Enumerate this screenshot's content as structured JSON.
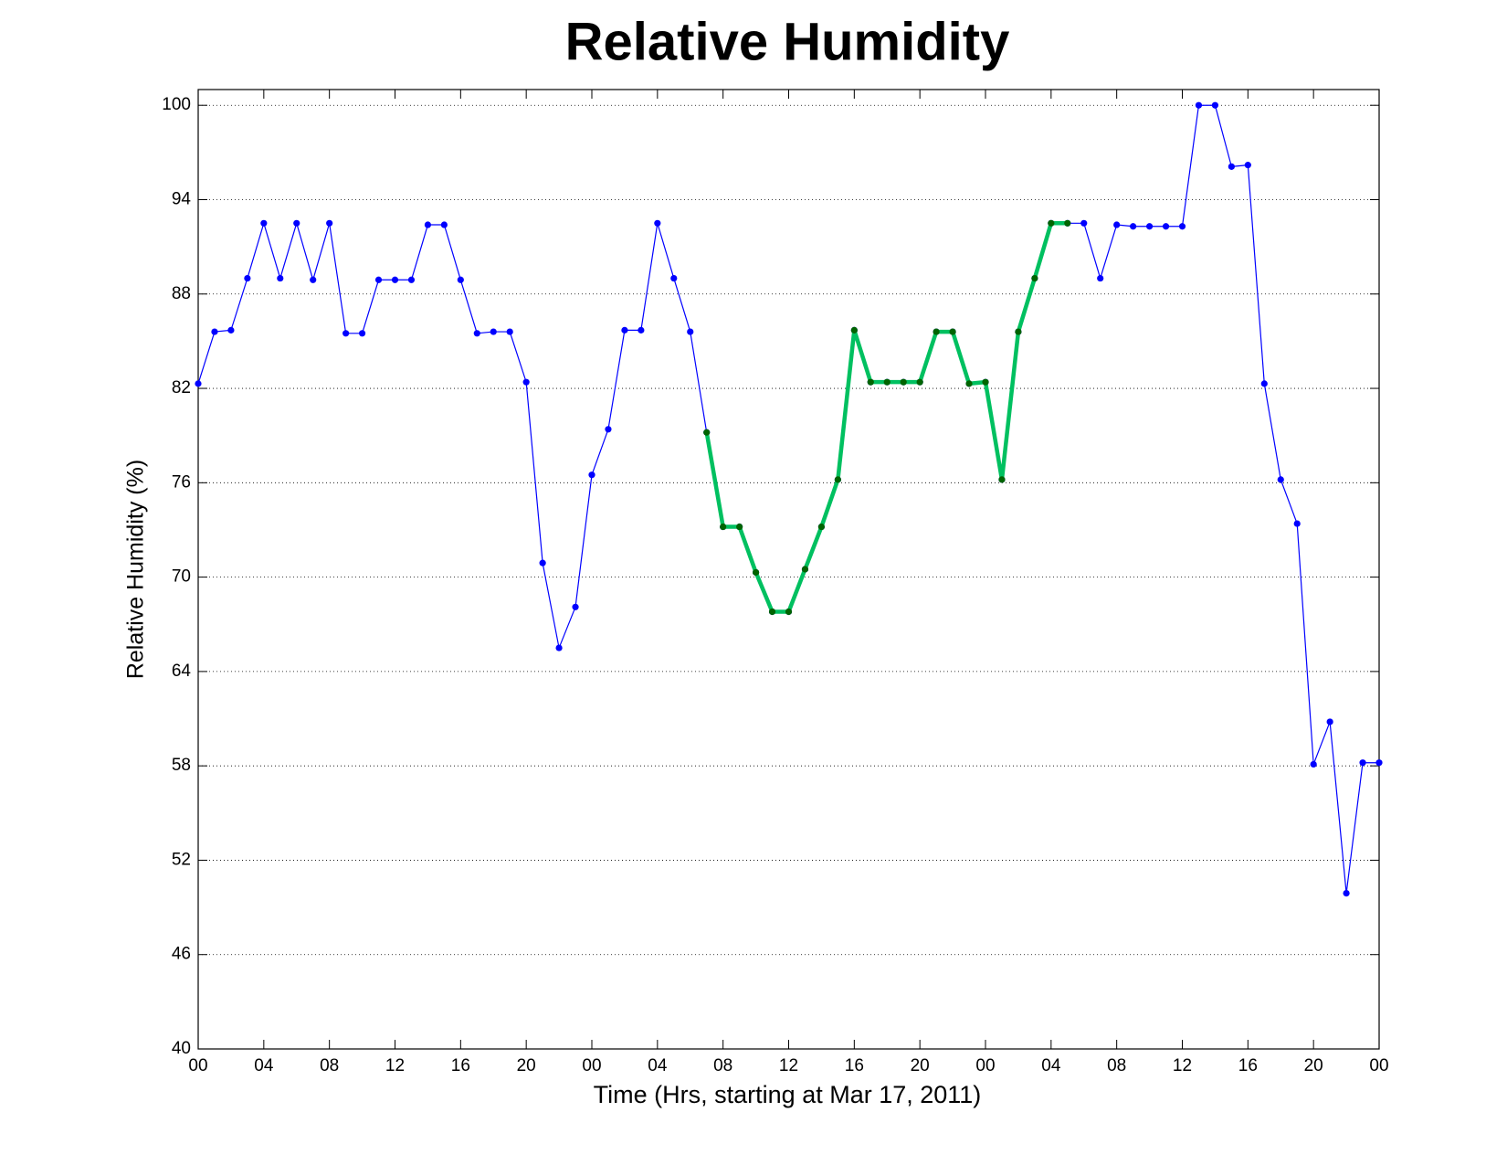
{
  "chart_data": {
    "type": "line",
    "title": "Relative Humidity",
    "xlabel": "Time (Hrs, starting at Mar 17, 2011)",
    "ylabel": "Relative Humidity (%)",
    "x": [
      0,
      1,
      2,
      3,
      4,
      5,
      6,
      7,
      8,
      9,
      10,
      11,
      12,
      13,
      14,
      15,
      16,
      17,
      18,
      19,
      20,
      21,
      22,
      23,
      24,
      25,
      26,
      27,
      28,
      29,
      30,
      31,
      32,
      33,
      34,
      35,
      36,
      37,
      38,
      39,
      40,
      41,
      42,
      43,
      44,
      45,
      46,
      47,
      48,
      49,
      50,
      51,
      52,
      53,
      54,
      55,
      56,
      57,
      58,
      59,
      60,
      61,
      62,
      63,
      64,
      65,
      66,
      67,
      68,
      69,
      70,
      71,
      72
    ],
    "series": [
      {
        "color": "#0000ff",
        "marker_color": "#0000ff",
        "line_width": 1.2,
        "values": [
          82.3,
          85.6,
          85.7,
          89.0,
          92.5,
          89.0,
          92.5,
          88.9,
          92.5,
          85.5,
          85.5,
          88.9,
          88.9,
          88.9,
          92.4,
          92.4,
          88.9,
          85.5,
          85.6,
          85.6,
          82.4,
          70.9,
          65.5,
          68.1,
          76.5,
          79.4,
          85.7,
          85.7,
          92.5,
          89.0,
          85.6,
          79.2,
          73.2,
          73.2,
          70.3,
          67.8,
          67.8,
          70.5,
          73.2,
          76.2,
          85.7,
          82.4,
          82.4,
          82.4,
          82.4,
          85.6,
          85.6,
          82.3,
          82.4,
          76.2,
          85.6,
          89.0,
          92.5,
          92.5,
          92.5,
          89.0,
          92.4,
          92.3,
          92.3,
          92.3,
          92.3,
          100,
          100,
          96.1,
          96.2,
          82.3,
          76.2,
          73.4,
          58.1,
          60.8,
          49.9,
          58.2,
          58.2
        ]
      },
      {
        "color": "#00c060",
        "marker_color": "#006400",
        "line_width": 4.5,
        "values": [
          null,
          null,
          null,
          null,
          null,
          null,
          null,
          null,
          null,
          null,
          null,
          null,
          null,
          null,
          null,
          null,
          null,
          null,
          null,
          null,
          null,
          null,
          null,
          null,
          null,
          null,
          null,
          null,
          null,
          null,
          null,
          79.2,
          73.2,
          73.2,
          70.3,
          67.8,
          67.8,
          70.5,
          73.2,
          76.2,
          85.7,
          82.4,
          82.4,
          82.4,
          82.4,
          85.6,
          85.6,
          82.3,
          82.4,
          76.2,
          85.6,
          89.0,
          92.5,
          92.5,
          null,
          null,
          null,
          null,
          null,
          null,
          null,
          null,
          null,
          null,
          null,
          null,
          null,
          null,
          null,
          null,
          null,
          null,
          null
        ]
      }
    ],
    "xlim": [
      0,
      72
    ],
    "xticks": [
      {
        "value": 0,
        "label": "00"
      },
      {
        "value": 4,
        "label": "04"
      },
      {
        "value": 8,
        "label": "08"
      },
      {
        "value": 12,
        "label": "12"
      },
      {
        "value": 16,
        "label": "16"
      },
      {
        "value": 20,
        "label": "20"
      },
      {
        "value": 24,
        "label": "00"
      },
      {
        "value": 28,
        "label": "04"
      },
      {
        "value": 32,
        "label": "08"
      },
      {
        "value": 36,
        "label": "12"
      },
      {
        "value": 40,
        "label": "16"
      },
      {
        "value": 44,
        "label": "20"
      },
      {
        "value": 48,
        "label": "00"
      },
      {
        "value": 52,
        "label": "04"
      },
      {
        "value": 56,
        "label": "08"
      },
      {
        "value": 60,
        "label": "12"
      },
      {
        "value": 64,
        "label": "16"
      },
      {
        "value": 68,
        "label": "20"
      },
      {
        "value": 72,
        "label": "00"
      }
    ],
    "ylim": [
      40,
      101
    ],
    "yticks": [
      40,
      46,
      52,
      58,
      64,
      70,
      76,
      82,
      88,
      94,
      100
    ],
    "grid": true
  }
}
